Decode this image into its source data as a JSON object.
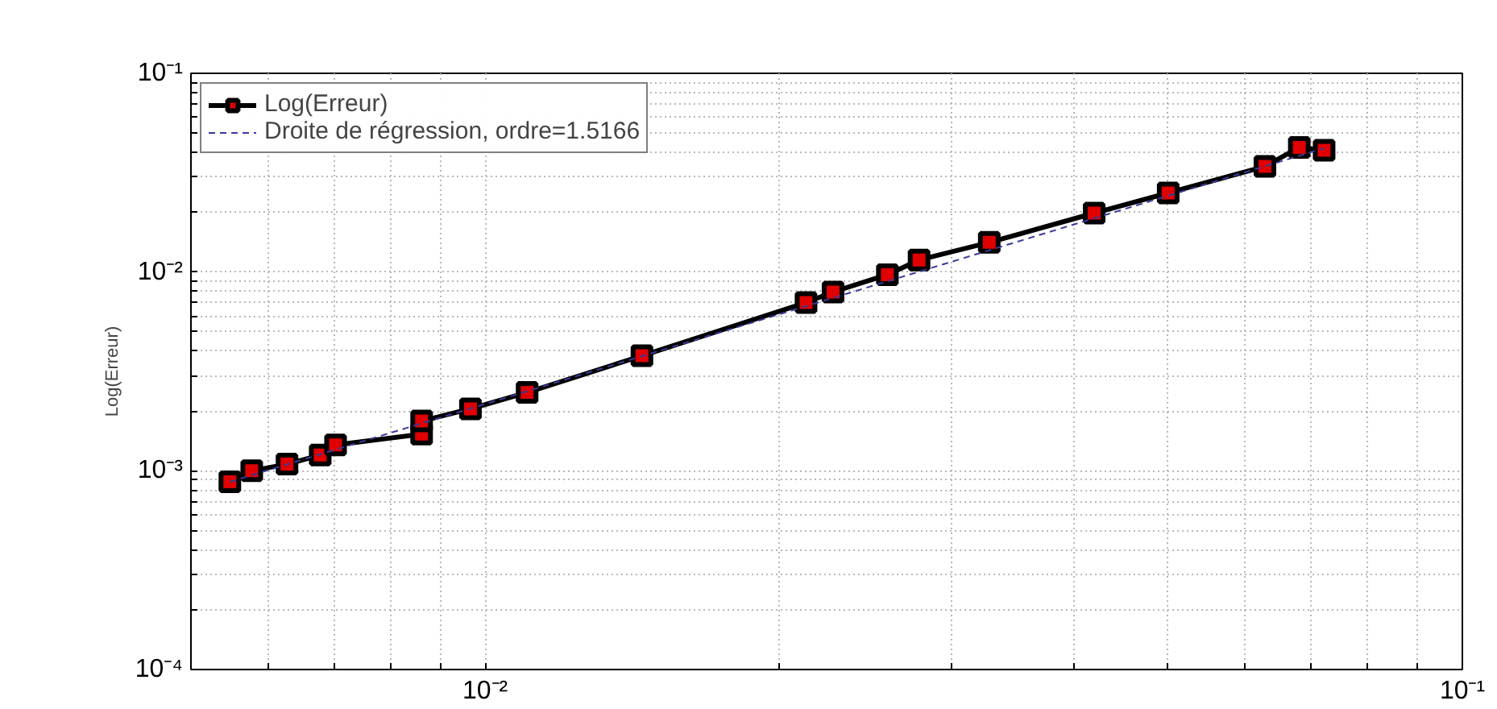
{
  "chart_data": {
    "type": "line",
    "ylabel": "Log(Erreur)",
    "log": "xy",
    "grid": true,
    "legend": "top left",
    "xlim": [
      0.005,
      0.1
    ],
    "ylim": [
      0.0001,
      0.1
    ],
    "xticks": [
      {
        "value": 0.005,
        "label": null
      },
      {
        "value": 0.006,
        "label": null
      },
      {
        "value": 0.007,
        "label": null
      },
      {
        "value": 0.008,
        "label": null
      },
      {
        "value": 0.009,
        "label": null
      },
      {
        "value": 0.01,
        "label": "10⁻²"
      },
      {
        "value": 0.02,
        "label": null
      },
      {
        "value": 0.03,
        "label": null
      },
      {
        "value": 0.04,
        "label": null
      },
      {
        "value": 0.05,
        "label": null
      },
      {
        "value": 0.06,
        "label": null
      },
      {
        "value": 0.07,
        "label": null
      },
      {
        "value": 0.08,
        "label": null
      },
      {
        "value": 0.09,
        "label": null
      },
      {
        "value": 0.1,
        "label": "10⁻¹"
      }
    ],
    "yticks": [
      {
        "value": 0.0001,
        "label": "10⁻⁴"
      },
      {
        "value": 0.0002,
        "label": null
      },
      {
        "value": 0.0003,
        "label": null
      },
      {
        "value": 0.0004,
        "label": null
      },
      {
        "value": 0.0005,
        "label": null
      },
      {
        "value": 0.0006,
        "label": null
      },
      {
        "value": 0.0007,
        "label": null
      },
      {
        "value": 0.0008,
        "label": null
      },
      {
        "value": 0.0009,
        "label": null
      },
      {
        "value": 0.001,
        "label": "10⁻³"
      },
      {
        "value": 0.002,
        "label": null
      },
      {
        "value": 0.003,
        "label": null
      },
      {
        "value": 0.004,
        "label": null
      },
      {
        "value": 0.005,
        "label": null
      },
      {
        "value": 0.006,
        "label": null
      },
      {
        "value": 0.007,
        "label": null
      },
      {
        "value": 0.008,
        "label": null
      },
      {
        "value": 0.009,
        "label": null
      },
      {
        "value": 0.01,
        "label": "10⁻²"
      },
      {
        "value": 0.02,
        "label": null
      },
      {
        "value": 0.03,
        "label": null
      },
      {
        "value": 0.04,
        "label": null
      },
      {
        "value": 0.05,
        "label": null
      },
      {
        "value": 0.06,
        "label": null
      },
      {
        "value": 0.07,
        "label": null
      },
      {
        "value": 0.08,
        "label": null
      },
      {
        "value": 0.09,
        "label": null
      },
      {
        "value": 0.1,
        "label": "10⁻¹"
      }
    ],
    "series": [
      {
        "name": "Log(Erreur)",
        "color": "#000000",
        "marker": "square",
        "line_style": "solid",
        "x": [
          0.00548,
          0.00577,
          0.00627,
          0.00678,
          0.00703,
          0.00861,
          0.00861,
          0.00966,
          0.01104,
          0.01447,
          0.0213,
          0.0227,
          0.0258,
          0.0278,
          0.0328,
          0.042,
          0.05,
          0.0628,
          0.0681,
          0.0722
        ],
        "values": [
          0.00088,
          0.001,
          0.00108,
          0.0012,
          0.00135,
          0.00153,
          0.00178,
          0.00205,
          0.00248,
          0.00379,
          0.00702,
          0.00794,
          0.0097,
          0.0115,
          0.0141,
          0.0198,
          0.025,
          0.034,
          0.0424,
          0.041
        ]
      },
      {
        "name": "Droite de régression, ordre=1.5166",
        "color": "#3a3a9a",
        "marker": "none",
        "line_style": "dashed",
        "x": [
          0.00548,
          0.0722
        ],
        "values": [
          0.00088,
          0.042
        ]
      }
    ]
  }
}
